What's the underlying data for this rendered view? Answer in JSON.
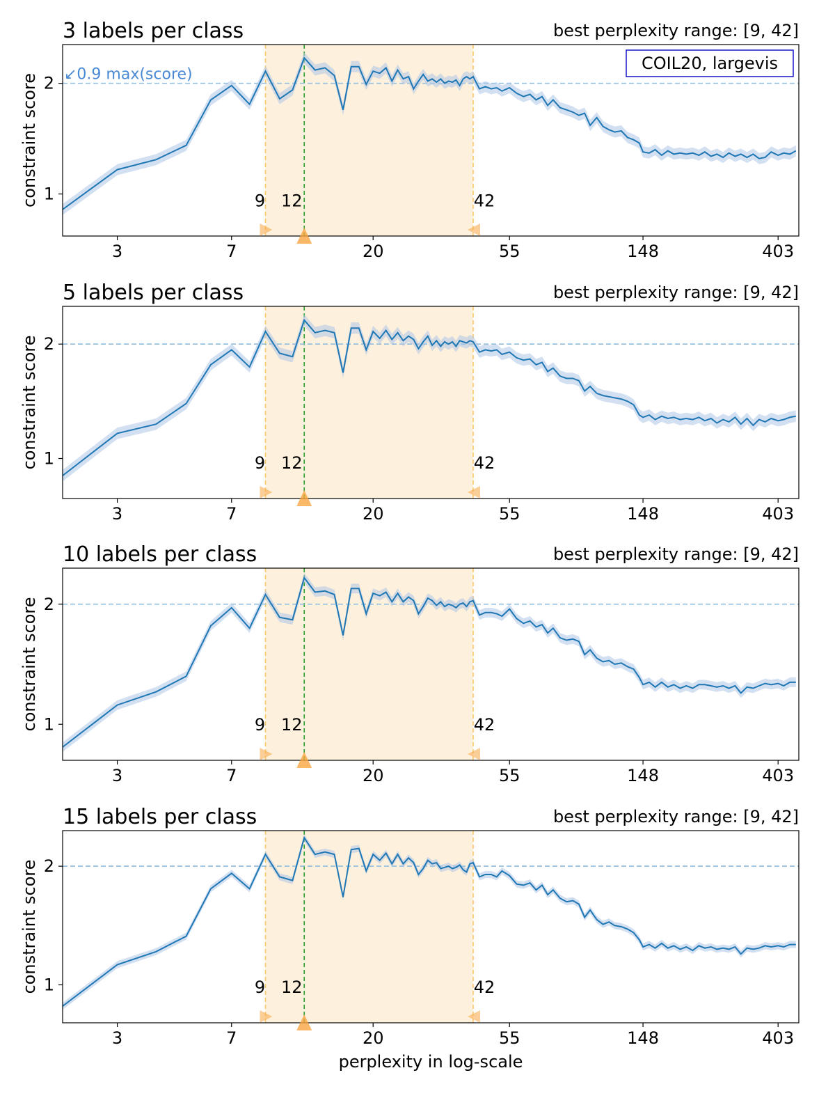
{
  "chart_data": [
    {
      "type": "line",
      "title": "3 labels per class",
      "range_text": "best perplexity range: [9, 42]",
      "ylabel": "constraint score",
      "xlabel": "",
      "xscale": "log",
      "xlim": [
        2.0,
        470
      ],
      "ylim": [
        0.62,
        2.35
      ],
      "yticks": [
        1,
        2
      ],
      "xticks": [
        3,
        7,
        20,
        55,
        148,
        403
      ],
      "threshold": 2.0,
      "threshold_label": "↙0.9 max(score)",
      "legend": "COIL20, largevis",
      "best_range": [
        9,
        42
      ],
      "best_perplexity": 12,
      "markers": [
        "9",
        "12",
        "42"
      ],
      "series": [
        {
          "x": [
            2,
            3,
            4,
            5,
            6,
            7,
            8,
            9,
            10,
            11,
            12,
            13,
            14,
            15,
            16,
            17,
            18,
            19,
            20,
            21,
            22,
            23,
            24,
            25,
            26,
            27,
            28,
            29,
            30,
            31,
            32,
            33,
            34,
            35,
            36,
            37,
            38,
            39,
            40,
            41,
            42,
            44,
            46,
            48,
            50,
            52,
            55,
            58,
            61,
            64,
            67,
            70,
            73,
            76,
            80,
            84,
            88,
            92,
            96,
            100,
            105,
            110,
            115,
            120,
            126,
            132,
            138,
            144,
            148,
            155,
            162,
            170,
            178,
            186,
            195,
            204,
            214,
            224,
            234,
            245,
            256,
            268,
            280,
            293,
            306,
            320,
            335,
            350,
            366,
            383,
            403,
            420,
            440,
            460
          ],
          "y": [
            0.86,
            1.22,
            1.31,
            1.44,
            1.85,
            1.98,
            1.81,
            2.11,
            1.86,
            1.94,
            2.23,
            2.12,
            2.14,
            2.07,
            1.76,
            2.15,
            2.15,
            1.99,
            2.11,
            2.09,
            2.14,
            2.02,
            2.12,
            2.04,
            2.06,
            1.95,
            2.02,
            2.08,
            2.02,
            2.04,
            2.01,
            2.04,
            2.0,
            2.02,
            2.01,
            2.03,
            1.98,
            2.04,
            2.06,
            2.04,
            2.06,
            1.95,
            1.97,
            1.95,
            1.96,
            1.93,
            1.96,
            1.91,
            1.88,
            1.9,
            1.85,
            1.88,
            1.8,
            1.85,
            1.78,
            1.76,
            1.74,
            1.71,
            1.73,
            1.62,
            1.69,
            1.61,
            1.58,
            1.56,
            1.57,
            1.51,
            1.49,
            1.46,
            1.38,
            1.37,
            1.4,
            1.35,
            1.39,
            1.36,
            1.37,
            1.36,
            1.37,
            1.35,
            1.38,
            1.34,
            1.36,
            1.33,
            1.37,
            1.34,
            1.36,
            1.33,
            1.36,
            1.32,
            1.33,
            1.38,
            1.35,
            1.37,
            1.36,
            1.39
          ],
          "band": 0.05
        }
      ]
    },
    {
      "type": "line",
      "title": "5 labels per class",
      "range_text": "best perplexity range: [9, 42]",
      "ylabel": "constraint score",
      "xlabel": "",
      "xscale": "log",
      "xlim": [
        2.0,
        470
      ],
      "ylim": [
        0.65,
        2.33
      ],
      "yticks": [
        1,
        2
      ],
      "xticks": [
        3,
        7,
        20,
        55,
        148,
        403
      ],
      "threshold": 2.0,
      "threshold_label": "",
      "legend": "",
      "best_range": [
        9,
        42
      ],
      "best_perplexity": 12,
      "markers": [
        "9",
        "12",
        "42"
      ],
      "series": [
        {
          "x": [
            2,
            3,
            4,
            5,
            6,
            7,
            8,
            9,
            10,
            11,
            12,
            13,
            14,
            15,
            16,
            17,
            18,
            19,
            20,
            21,
            22,
            23,
            24,
            25,
            26,
            27,
            28,
            29,
            30,
            31,
            32,
            33,
            34,
            35,
            36,
            37,
            38,
            39,
            40,
            41,
            42,
            44,
            46,
            48,
            50,
            52,
            55,
            58,
            61,
            64,
            67,
            70,
            73,
            76,
            80,
            84,
            88,
            92,
            96,
            100,
            105,
            110,
            115,
            120,
            126,
            132,
            138,
            144,
            148,
            155,
            162,
            170,
            178,
            186,
            195,
            204,
            214,
            224,
            234,
            245,
            256,
            268,
            280,
            293,
            306,
            320,
            335,
            350,
            366,
            383,
            403,
            420,
            440,
            460
          ],
          "y": [
            0.85,
            1.22,
            1.3,
            1.48,
            1.82,
            1.95,
            1.8,
            2.11,
            1.92,
            1.89,
            2.21,
            2.1,
            2.12,
            2.1,
            1.75,
            2.14,
            2.14,
            1.95,
            2.11,
            2.05,
            2.12,
            2.04,
            2.1,
            2.03,
            2.07,
            2.04,
            1.96,
            2.02,
            2.07,
            1.99,
            2.03,
            1.98,
            2.02,
            2.0,
            2.02,
            1.98,
            2.03,
            2.02,
            2.01,
            2.03,
            2.02,
            1.93,
            1.95,
            1.94,
            1.95,
            1.91,
            1.93,
            1.88,
            1.86,
            1.87,
            1.82,
            1.84,
            1.76,
            1.79,
            1.72,
            1.7,
            1.7,
            1.68,
            1.59,
            1.63,
            1.57,
            1.55,
            1.54,
            1.53,
            1.52,
            1.5,
            1.47,
            1.38,
            1.36,
            1.38,
            1.34,
            1.37,
            1.35,
            1.36,
            1.34,
            1.35,
            1.34,
            1.36,
            1.33,
            1.35,
            1.31,
            1.34,
            1.32,
            1.36,
            1.3,
            1.35,
            1.29,
            1.34,
            1.32,
            1.35,
            1.33,
            1.34,
            1.36,
            1.37
          ],
          "band": 0.05
        }
      ]
    },
    {
      "type": "line",
      "title": "10 labels per class",
      "range_text": "best perplexity range: [9, 42]",
      "ylabel": "constraint score",
      "xlabel": "",
      "xscale": "log",
      "xlim": [
        2.0,
        470
      ],
      "ylim": [
        0.7,
        2.3
      ],
      "yticks": [
        1,
        2
      ],
      "xticks": [
        3,
        7,
        20,
        55,
        148,
        403
      ],
      "threshold": 2.0,
      "threshold_label": "",
      "legend": "",
      "best_range": [
        9,
        42
      ],
      "best_perplexity": 12,
      "markers": [
        "9",
        "12",
        "42"
      ],
      "series": [
        {
          "x": [
            2,
            3,
            4,
            5,
            6,
            7,
            8,
            9,
            10,
            11,
            12,
            13,
            14,
            15,
            16,
            17,
            18,
            19,
            20,
            21,
            22,
            23,
            24,
            25,
            26,
            27,
            28,
            29,
            30,
            31,
            32,
            33,
            34,
            35,
            36,
            37,
            38,
            39,
            40,
            41,
            42,
            44,
            46,
            48,
            50,
            52,
            55,
            58,
            61,
            64,
            67,
            70,
            73,
            76,
            80,
            84,
            88,
            92,
            96,
            100,
            105,
            110,
            115,
            120,
            126,
            132,
            138,
            144,
            148,
            155,
            162,
            170,
            178,
            186,
            195,
            204,
            214,
            224,
            234,
            245,
            256,
            268,
            280,
            293,
            306,
            320,
            335,
            350,
            366,
            383,
            403,
            420,
            440,
            460
          ],
          "y": [
            0.81,
            1.16,
            1.27,
            1.4,
            1.82,
            1.97,
            1.8,
            2.08,
            1.89,
            1.87,
            2.22,
            2.1,
            2.11,
            2.08,
            1.74,
            2.13,
            2.13,
            1.92,
            2.09,
            2.07,
            2.1,
            2.02,
            2.09,
            2.02,
            2.06,
            2.03,
            1.92,
            1.98,
            2.05,
            2.03,
            1.99,
            2.02,
            1.98,
            2.0,
            1.99,
            1.97,
            2.0,
            2.01,
            1.98,
            2.02,
            2.03,
            1.91,
            1.93,
            1.93,
            1.92,
            1.9,
            1.96,
            1.88,
            1.84,
            1.86,
            1.81,
            1.83,
            1.76,
            1.8,
            1.72,
            1.7,
            1.71,
            1.69,
            1.58,
            1.62,
            1.55,
            1.52,
            1.53,
            1.5,
            1.51,
            1.48,
            1.46,
            1.39,
            1.33,
            1.35,
            1.31,
            1.35,
            1.31,
            1.33,
            1.3,
            1.32,
            1.3,
            1.33,
            1.33,
            1.32,
            1.31,
            1.32,
            1.3,
            1.32,
            1.26,
            1.31,
            1.3,
            1.32,
            1.34,
            1.33,
            1.34,
            1.32,
            1.35,
            1.35
          ],
          "band": 0.04
        }
      ]
    },
    {
      "type": "line",
      "title": "15 labels per class",
      "range_text": "best perplexity range: [9, 42]",
      "ylabel": "constraint score",
      "xlabel": "perplexity in log-scale",
      "xscale": "log",
      "xlim": [
        2.0,
        470
      ],
      "ylim": [
        0.68,
        2.3
      ],
      "yticks": [
        1,
        2
      ],
      "xticks": [
        3,
        7,
        20,
        55,
        148,
        403
      ],
      "threshold": 2.0,
      "threshold_label": "",
      "legend": "",
      "best_range": [
        9,
        42
      ],
      "best_perplexity": 12,
      "markers": [
        "9",
        "12",
        "42"
      ],
      "series": [
        {
          "x": [
            2,
            3,
            4,
            5,
            6,
            7,
            8,
            9,
            10,
            11,
            12,
            13,
            14,
            15,
            16,
            17,
            18,
            19,
            20,
            21,
            22,
            23,
            24,
            25,
            26,
            27,
            28,
            29,
            30,
            31,
            32,
            33,
            34,
            35,
            36,
            37,
            38,
            39,
            40,
            41,
            42,
            44,
            46,
            48,
            50,
            52,
            55,
            58,
            61,
            64,
            67,
            70,
            73,
            76,
            80,
            84,
            88,
            92,
            96,
            100,
            105,
            110,
            115,
            120,
            126,
            132,
            138,
            144,
            148,
            155,
            162,
            170,
            178,
            186,
            195,
            204,
            214,
            224,
            234,
            245,
            256,
            268,
            280,
            293,
            306,
            320,
            335,
            350,
            366,
            383,
            403,
            420,
            440,
            460
          ],
          "y": [
            0.82,
            1.17,
            1.28,
            1.41,
            1.81,
            1.94,
            1.81,
            2.1,
            1.91,
            1.88,
            2.24,
            2.1,
            2.12,
            2.1,
            1.74,
            2.14,
            2.15,
            1.96,
            2.1,
            2.05,
            2.11,
            2.02,
            2.1,
            2.02,
            2.07,
            2.03,
            1.93,
            1.98,
            2.05,
            2.02,
            2.03,
            1.98,
            1.99,
            2.0,
            1.98,
            1.99,
            2.01,
            1.97,
            1.95,
            2.02,
            2.03,
            1.91,
            1.93,
            1.93,
            1.91,
            1.96,
            1.92,
            1.85,
            1.84,
            1.86,
            1.8,
            1.84,
            1.76,
            1.8,
            1.73,
            1.7,
            1.71,
            1.68,
            1.57,
            1.63,
            1.55,
            1.51,
            1.53,
            1.5,
            1.49,
            1.47,
            1.44,
            1.38,
            1.32,
            1.34,
            1.31,
            1.35,
            1.31,
            1.33,
            1.3,
            1.32,
            1.29,
            1.33,
            1.31,
            1.32,
            1.3,
            1.31,
            1.3,
            1.32,
            1.26,
            1.31,
            1.3,
            1.31,
            1.33,
            1.32,
            1.33,
            1.32,
            1.34,
            1.34
          ],
          "band": 0.03
        }
      ]
    }
  ],
  "colors": {
    "line": "#1f77b4",
    "band": "#aec7e8",
    "range_fill": "#fdf0dc",
    "range_edge": "#fbc76a",
    "best_line": "#2ca02c",
    "threshold_line": "#8fbcdc",
    "threshold_text": "#4a8ad4",
    "marker": "#f7a541",
    "legend_border": "#1414c8"
  }
}
